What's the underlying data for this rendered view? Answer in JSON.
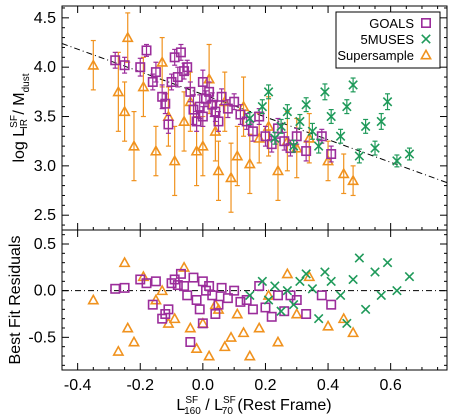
{
  "chart_data": [
    {
      "type": "scatter",
      "panel": "top",
      "ylabel": "log L_IR^SF / M_dust",
      "ylabel_main": "log L",
      "ylabel_sup": "SF",
      "ylabel_sub": "IR",
      "ylabel_rest": " / M",
      "ylabel_sub2": "dust",
      "xlim": [
        -0.45,
        0.78
      ],
      "ylim": [
        2.35,
        4.62
      ],
      "yticks": [
        2.5,
        3.0,
        3.5,
        4.0,
        4.5
      ],
      "ytick_labels": [
        "2.5",
        "3.0",
        "3.5",
        "4.0",
        "4.5"
      ],
      "legend_position": "top-right",
      "fit_line": {
        "style": "dash-dot",
        "x": [
          -0.45,
          0.78
        ],
        "y": [
          4.24,
          2.83
        ]
      },
      "series": [
        {
          "name": "GOALS",
          "marker": "square",
          "color": "#9b2d9b",
          "points": [
            [
              -0.28,
              4.07,
              0.08
            ],
            [
              -0.25,
              4.02,
              0.08
            ],
            [
              -0.2,
              4.0,
              0.09
            ],
            [
              -0.18,
              4.17,
              0.06
            ],
            [
              -0.16,
              3.85,
              0.08
            ],
            [
              -0.15,
              3.95,
              0.1
            ],
            [
              -0.13,
              3.7,
              0.12
            ],
            [
              -0.12,
              3.63,
              0.1
            ],
            [
              -0.11,
              3.42,
              0.09
            ],
            [
              -0.1,
              3.85,
              0.08
            ],
            [
              -0.09,
              4.1,
              0.08
            ],
            [
              -0.08,
              3.9,
              0.1
            ],
            [
              -0.07,
              4.15,
              0.08
            ],
            [
              -0.06,
              3.96,
              0.08
            ],
            [
              -0.05,
              4.0,
              0.07
            ],
            [
              -0.04,
              3.75,
              0.1
            ],
            [
              -0.03,
              3.57,
              0.15
            ],
            [
              -0.02,
              3.45,
              0.1
            ],
            [
              -0.01,
              3.6,
              0.12
            ],
            [
              0.0,
              3.85,
              0.12
            ],
            [
              0.0,
              3.5,
              0.1
            ],
            [
              0.01,
              3.68,
              0.08
            ],
            [
              0.02,
              3.75,
              0.1
            ],
            [
              0.03,
              3.62,
              0.12
            ],
            [
              0.04,
              3.55,
              0.1
            ],
            [
              0.05,
              3.45,
              0.1
            ],
            [
              0.06,
              3.7,
              0.08
            ],
            [
              0.08,
              3.58,
              0.09
            ],
            [
              0.1,
              3.65,
              0.08
            ],
            [
              0.12,
              3.52,
              0.1
            ],
            [
              0.14,
              3.45,
              0.08
            ],
            [
              0.16,
              3.35,
              0.1
            ],
            [
              0.18,
              3.5,
              0.08
            ],
            [
              0.2,
              3.3,
              0.1
            ],
            [
              0.22,
              3.22,
              0.08
            ],
            [
              0.24,
              3.38,
              0.1
            ],
            [
              0.26,
              3.25,
              0.09
            ],
            [
              0.28,
              3.18,
              0.08
            ],
            [
              0.3,
              3.3,
              0.08
            ],
            [
              0.33,
              3.15,
              0.1
            ],
            [
              0.38,
              3.3,
              0.07
            ],
            [
              0.41,
              3.12,
              0.08
            ]
          ]
        },
        {
          "name": "5MUSES",
          "marker": "x",
          "color": "#1f9a5a",
          "points": [
            [
              0.15,
              3.48,
              0.06
            ],
            [
              0.19,
              3.6,
              0.07
            ],
            [
              0.21,
              3.75,
              0.07
            ],
            [
              0.23,
              3.28,
              0.06
            ],
            [
              0.25,
              3.4,
              0.07
            ],
            [
              0.27,
              3.55,
              0.07
            ],
            [
              0.29,
              3.2,
              0.06
            ],
            [
              0.31,
              3.45,
              0.07
            ],
            [
              0.33,
              3.62,
              0.07
            ],
            [
              0.35,
              3.35,
              0.08
            ],
            [
              0.37,
              3.2,
              0.07
            ],
            [
              0.39,
              3.75,
              0.08
            ],
            [
              0.41,
              3.5,
              0.07
            ],
            [
              0.44,
              3.3,
              0.07
            ],
            [
              0.46,
              3.6,
              0.07
            ],
            [
              0.48,
              3.82,
              0.07
            ],
            [
              0.5,
              3.1,
              0.07
            ],
            [
              0.52,
              3.4,
              0.07
            ],
            [
              0.55,
              3.18,
              0.07
            ],
            [
              0.57,
              3.45,
              0.08
            ],
            [
              0.59,
              3.65,
              0.08
            ],
            [
              0.62,
              3.05,
              0.06
            ],
            [
              0.66,
              3.12,
              0.06
            ]
          ]
        },
        {
          "name": "Supersample",
          "marker": "triangle",
          "color": "#f0921e",
          "points": [
            [
              -0.35,
              4.02,
              0.25
            ],
            [
              -0.27,
              3.75,
              0.4
            ],
            [
              -0.25,
              3.55,
              0.3
            ],
            [
              -0.24,
              4.3,
              0.25
            ],
            [
              -0.22,
              3.2,
              0.35
            ],
            [
              -0.19,
              3.8,
              0.3
            ],
            [
              -0.15,
              3.15,
              0.25
            ],
            [
              -0.13,
              4.05,
              0.25
            ],
            [
              -0.11,
              3.5,
              0.3
            ],
            [
              -0.09,
              3.05,
              0.35
            ],
            [
              -0.06,
              3.45,
              0.3
            ],
            [
              -0.04,
              3.65,
              0.3
            ],
            [
              -0.02,
              3.15,
              0.35
            ],
            [
              0.0,
              3.2,
              0.3
            ],
            [
              0.02,
              3.88,
              0.35
            ],
            [
              0.04,
              3.35,
              0.3
            ],
            [
              0.05,
              2.95,
              0.3
            ],
            [
              0.07,
              3.65,
              0.3
            ],
            [
              0.09,
              2.88,
              0.35
            ],
            [
              0.11,
              3.1,
              0.3
            ],
            [
              0.13,
              3.6,
              0.3
            ],
            [
              0.15,
              3.02,
              0.3
            ],
            [
              0.18,
              3.28,
              0.25
            ],
            [
              0.21,
              3.4,
              0.3
            ],
            [
              0.24,
              2.95,
              0.3
            ],
            [
              0.27,
              3.25,
              0.3
            ],
            [
              0.3,
              3.18,
              0.3
            ],
            [
              0.34,
              3.28,
              0.25
            ],
            [
              0.4,
              3.05,
              0.2
            ],
            [
              0.45,
              2.92,
              0.2
            ],
            [
              0.48,
              2.85,
              0.15
            ]
          ]
        }
      ]
    },
    {
      "type": "scatter",
      "panel": "bottom",
      "ylabel": "Best Fit Residuals",
      "xlabel": "L_160^SF / L_70^SF (Rest Frame)",
      "xlim": [
        -0.45,
        0.78
      ],
      "ylim": [
        -0.85,
        0.65
      ],
      "xticks": [
        -0.4,
        -0.2,
        0.0,
        0.2,
        0.4,
        0.6
      ],
      "xtick_labels": [
        "-0.4",
        "-0.2",
        "0.0",
        "0.2",
        "0.4",
        "0.6"
      ],
      "yticks": [
        -0.5,
        0.0,
        0.5
      ],
      "ytick_labels": [
        "-0.5",
        "0.0",
        "0.5"
      ],
      "zero_line": {
        "style": "dash-dot",
        "y": 0.0
      },
      "series": [
        {
          "name": "GOALS",
          "marker": "square",
          "color": "#9b2d9b",
          "points": [
            [
              -0.28,
              0.02
            ],
            [
              -0.25,
              0.03
            ],
            [
              -0.2,
              0.12
            ],
            [
              -0.18,
              0.08
            ],
            [
              -0.16,
              -0.15
            ],
            [
              -0.15,
              0.1
            ],
            [
              -0.13,
              -0.3
            ],
            [
              -0.12,
              -0.25
            ],
            [
              -0.11,
              -0.2
            ],
            [
              -0.1,
              0.08
            ],
            [
              -0.09,
              0.12
            ],
            [
              -0.08,
              0.06
            ],
            [
              -0.07,
              0.18
            ],
            [
              -0.06,
              0.05
            ],
            [
              -0.05,
              -0.05
            ],
            [
              -0.04,
              -0.55
            ],
            [
              -0.03,
              0.14
            ],
            [
              -0.02,
              -0.1
            ],
            [
              -0.01,
              -0.2
            ],
            [
              0.0,
              0.1
            ],
            [
              0.0,
              -0.35
            ],
            [
              0.01,
              0.0
            ],
            [
              0.02,
              0.05
            ],
            [
              0.03,
              -0.05
            ],
            [
              0.04,
              -0.25
            ],
            [
              0.05,
              -0.15
            ],
            [
              0.06,
              0.03
            ],
            [
              0.08,
              -0.08
            ],
            [
              0.1,
              0.0
            ],
            [
              0.12,
              -0.12
            ],
            [
              0.14,
              -0.1
            ],
            [
              0.16,
              -0.2
            ],
            [
              0.18,
              0.05
            ],
            [
              0.2,
              -0.18
            ],
            [
              0.22,
              -0.28
            ],
            [
              0.24,
              -0.05
            ],
            [
              0.26,
              -0.22
            ],
            [
              0.28,
              -0.05
            ],
            [
              0.3,
              -0.1
            ],
            [
              0.33,
              -0.25
            ],
            [
              0.38,
              -0.05
            ],
            [
              0.41,
              -0.15
            ]
          ]
        },
        {
          "name": "5MUSES",
          "marker": "x",
          "color": "#1f9a5a",
          "points": [
            [
              0.15,
              -0.05
            ],
            [
              0.19,
              0.1
            ],
            [
              0.21,
              -0.1
            ],
            [
              0.23,
              0.05
            ],
            [
              0.25,
              -0.22
            ],
            [
              0.27,
              0.0
            ],
            [
              0.29,
              -0.15
            ],
            [
              0.31,
              0.1
            ],
            [
              0.33,
              0.18
            ],
            [
              0.35,
              0.02
            ],
            [
              0.37,
              -0.3
            ],
            [
              0.39,
              0.2
            ],
            [
              0.41,
              0.1
            ],
            [
              0.44,
              -0.05
            ],
            [
              0.46,
              -0.35
            ],
            [
              0.48,
              0.12
            ],
            [
              0.5,
              0.35
            ],
            [
              0.52,
              -0.2
            ],
            [
              0.55,
              0.2
            ],
            [
              0.57,
              -0.05
            ],
            [
              0.59,
              0.3
            ],
            [
              0.62,
              0.0
            ],
            [
              0.66,
              0.15
            ]
          ]
        },
        {
          "name": "Supersample",
          "marker": "triangle",
          "color": "#f0921e",
          "points": [
            [
              -0.35,
              -0.1
            ],
            [
              -0.27,
              -0.65
            ],
            [
              -0.25,
              0.3
            ],
            [
              -0.24,
              -0.4
            ],
            [
              -0.22,
              -0.55
            ],
            [
              -0.19,
              0.15
            ],
            [
              -0.15,
              -0.1
            ],
            [
              -0.13,
              0.0
            ],
            [
              -0.11,
              -0.35
            ],
            [
              -0.09,
              -0.3
            ],
            [
              -0.06,
              0.25
            ],
            [
              -0.04,
              -0.4
            ],
            [
              -0.02,
              -0.62
            ],
            [
              0.0,
              -0.35
            ],
            [
              0.02,
              -0.7
            ],
            [
              0.04,
              -0.15
            ],
            [
              0.05,
              -0.2
            ],
            [
              0.07,
              -0.6
            ],
            [
              0.09,
              -0.5
            ],
            [
              0.11,
              -0.25
            ],
            [
              0.13,
              -0.45
            ],
            [
              0.15,
              -0.7
            ],
            [
              0.18,
              -0.4
            ],
            [
              0.21,
              -0.05
            ],
            [
              0.24,
              -0.55
            ],
            [
              0.27,
              0.18
            ],
            [
              0.3,
              -0.25
            ],
            [
              0.34,
              0.15
            ],
            [
              0.4,
              -0.38
            ],
            [
              0.45,
              -0.3
            ],
            [
              0.48,
              -0.45
            ]
          ]
        }
      ]
    }
  ],
  "legend": {
    "items": [
      {
        "label": "GOALS",
        "marker": "square",
        "color": "#9b2d9b"
      },
      {
        "label": "5MUSES",
        "marker": "x",
        "color": "#1f9a5a"
      },
      {
        "label": "Supersample",
        "marker": "triangle",
        "color": "#f0921e"
      }
    ]
  },
  "xaxis_title": {
    "main1": "L",
    "sub1": "160",
    "sup1": "SF",
    "mid": " / L",
    "sub2": "70",
    "sup2": "SF",
    "rest": " (Rest Frame)"
  }
}
